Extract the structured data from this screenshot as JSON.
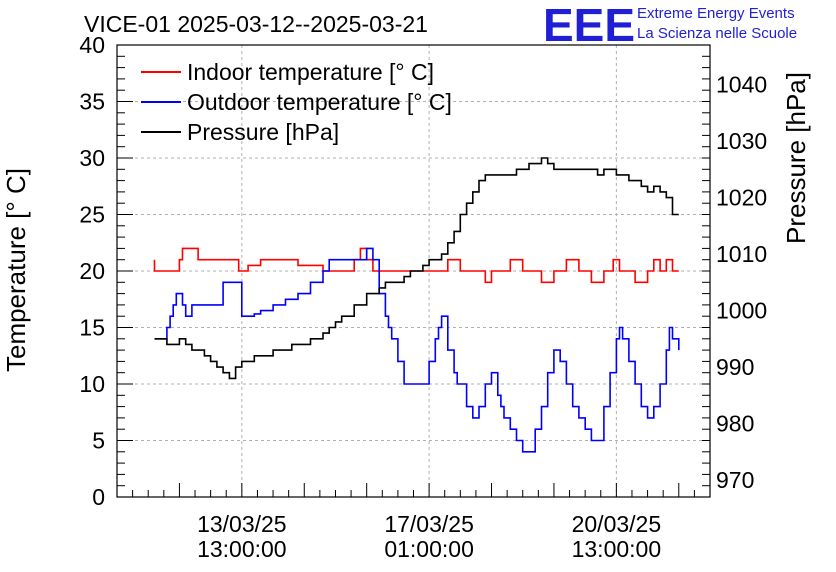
{
  "title": "VICE-01 2025-03-12--2025-03-21",
  "logo": {
    "mark": "EEE",
    "line1": "Extreme Energy Events",
    "line2": "La Scienza nelle Scuole"
  },
  "chart_data": {
    "type": "line",
    "title": "VICE-01 2025-03-12--2025-03-21",
    "ylabel": "Temperature [° C]",
    "y2label": "Pressure [hPa]",
    "ylim": [
      0,
      40
    ],
    "y2lim": [
      967,
      1047
    ],
    "xlim": [
      0,
      9.5
    ],
    "yticks": [
      "0",
      "5",
      "10",
      "15",
      "20",
      "25",
      "30",
      "35",
      "40"
    ],
    "y2ticks": [
      "970",
      "980",
      "990",
      "1000",
      "1010",
      "1020",
      "1030",
      "1040"
    ],
    "xticks": [
      {
        "x": 2.0,
        "line1": "13/03/25",
        "line2": "13:00:00"
      },
      {
        "x": 5.0,
        "line1": "17/03/25",
        "line2": "01:00:00"
      },
      {
        "x": 8.0,
        "line1": "20/03/25",
        "line2": "13:00:00"
      }
    ],
    "grid": true,
    "legend_position": "top-left",
    "series": [
      {
        "name": "Indoor temperature [° C]",
        "axis": "left",
        "color": "#ff0000",
        "x": [
          0.6,
          0.6,
          0.95,
          1.0,
          1.05,
          1.15,
          1.3,
          1.5,
          1.7,
          1.95,
          2.1,
          2.3,
          2.5,
          2.9,
          3.3,
          3.6,
          3.65,
          3.7,
          3.8,
          3.9,
          4.0,
          4.1,
          4.3,
          4.5,
          4.6,
          4.8,
          5.0,
          5.1,
          5.3,
          5.5,
          5.7,
          5.9,
          6.0,
          6.3,
          6.5,
          6.8,
          7.0,
          7.2,
          7.4,
          7.6,
          7.8,
          7.95,
          8.05,
          8.3,
          8.5,
          8.6,
          8.7,
          8.8,
          8.9,
          9.0
        ],
        "y": [
          21,
          20,
          20,
          21,
          22,
          22,
          21,
          21,
          21,
          20,
          20.5,
          21,
          21,
          20.5,
          20,
          20,
          20,
          20,
          21,
          22,
          21,
          20,
          20,
          20,
          20,
          20,
          20,
          20,
          21,
          20,
          20,
          19,
          20,
          21,
          20,
          19,
          20,
          21,
          20,
          19,
          20,
          21,
          20,
          19,
          20,
          21,
          20,
          21,
          20,
          20
        ]
      },
      {
        "name": "Outdoor temperature [° C]",
        "axis": "left",
        "color": "#0000ff",
        "x": [
          0.6,
          0.75,
          0.8,
          0.85,
          0.9,
          0.95,
          1.0,
          1.05,
          1.1,
          1.15,
          1.2,
          1.3,
          1.4,
          1.55,
          1.7,
          2.0,
          2.2,
          2.3,
          2.5,
          2.7,
          2.9,
          3.1,
          3.3,
          3.4,
          3.5,
          3.6,
          3.75,
          3.9,
          4.0,
          4.1,
          4.2,
          4.3,
          4.35,
          4.4,
          4.5,
          4.6,
          4.7,
          4.8,
          4.9,
          5.0,
          5.1,
          5.15,
          5.2,
          5.3,
          5.4,
          5.45,
          5.5,
          5.6,
          5.7,
          5.8,
          5.9,
          6.0,
          6.1,
          6.15,
          6.2,
          6.3,
          6.4,
          6.5,
          6.6,
          6.7,
          6.8,
          6.9,
          7.0,
          7.05,
          7.1,
          7.2,
          7.3,
          7.4,
          7.5,
          7.6,
          7.7,
          7.8,
          7.9,
          8.0,
          8.05,
          8.1,
          8.2,
          8.3,
          8.4,
          8.5,
          8.6,
          8.7,
          8.8,
          8.85,
          8.9,
          9.0
        ],
        "y": [
          14,
          14,
          15,
          16,
          17,
          18,
          18,
          17,
          16,
          16,
          17,
          17,
          17,
          17,
          19,
          16,
          16.2,
          16.5,
          17,
          17.5,
          18,
          19,
          20,
          21,
          21,
          21,
          21,
          21,
          22,
          21,
          18,
          16,
          15,
          14,
          12,
          10,
          10,
          10,
          10,
          12,
          14,
          15,
          16,
          13,
          11,
          10,
          10,
          8,
          7,
          8,
          10,
          11,
          9,
          8,
          7,
          6,
          5,
          4,
          4,
          6,
          8,
          11,
          13,
          13,
          12,
          10,
          8,
          7,
          6,
          5,
          5,
          8,
          11,
          14,
          15,
          14,
          12,
          10,
          8,
          7,
          8,
          10,
          13,
          15,
          14,
          13
        ]
      },
      {
        "name": "Pressure [hPa]",
        "axis": "right",
        "color": "#000000",
        "x": [
          0.6,
          0.8,
          0.9,
          1.0,
          1.1,
          1.2,
          1.3,
          1.4,
          1.5,
          1.6,
          1.7,
          1.8,
          1.9,
          2.0,
          2.2,
          2.5,
          2.8,
          3.1,
          3.3,
          3.4,
          3.5,
          3.6,
          3.8,
          4.0,
          4.2,
          4.3,
          4.4,
          4.6,
          4.7,
          4.8,
          4.9,
          5.0,
          5.2,
          5.3,
          5.4,
          5.5,
          5.6,
          5.7,
          5.8,
          5.9,
          6.0,
          6.2,
          6.4,
          6.6,
          6.8,
          6.9,
          7.0,
          7.2,
          7.4,
          7.6,
          7.7,
          7.8,
          7.9,
          8.0,
          8.2,
          8.4,
          8.5,
          8.6,
          8.7,
          8.8,
          8.9,
          9.0
        ],
        "y": [
          995,
          994,
          994,
          995,
          994,
          993,
          993,
          992,
          991,
          990,
          989,
          988,
          990,
          991,
          992,
          993,
          994,
          995,
          996,
          997,
          998,
          999,
          1001,
          1003,
          1004,
          1005,
          1005,
          1006,
          1007,
          1007,
          1008,
          1009,
          1010,
          1012,
          1014,
          1017,
          1019,
          1021,
          1023,
          1024,
          1024,
          1024,
          1025,
          1026,
          1027,
          1026,
          1025,
          1025,
          1025,
          1025,
          1024,
          1025,
          1025,
          1024,
          1023,
          1022,
          1021,
          1022,
          1021,
          1020,
          1017,
          1017
        ]
      }
    ]
  }
}
